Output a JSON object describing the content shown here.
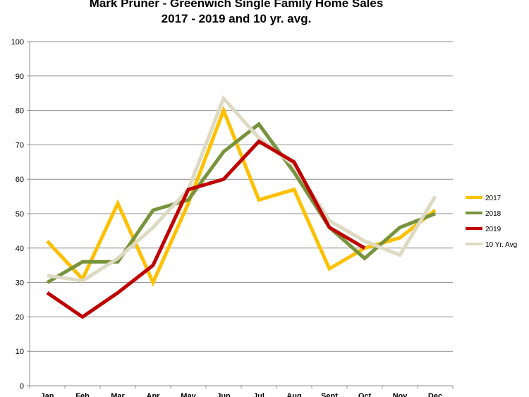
{
  "chart_data": {
    "type": "line",
    "title_line1": "Mark Pruner - Greenwich Single Family Home Sales",
    "title_line2": "2017 - 2019 and 10 yr. avg.",
    "categories": [
      "Jan",
      "Feb",
      "Mar",
      "Apr",
      "May",
      "Jun",
      "Jul",
      "Aug",
      "Sept",
      "Oct",
      "Nov",
      "Dec"
    ],
    "ylim": [
      0,
      100
    ],
    "yticks": [
      0,
      10,
      20,
      30,
      40,
      50,
      60,
      70,
      80,
      90,
      100
    ],
    "grid": true,
    "legend_position": "right",
    "series": [
      {
        "name": "2017",
        "color": "#FFC000",
        "values": [
          42,
          31,
          53,
          30,
          53,
          80,
          54,
          57,
          34,
          40,
          43,
          51
        ]
      },
      {
        "name": "2018",
        "color": "#77933C",
        "values": [
          30,
          36,
          36,
          51,
          54,
          68,
          76,
          62,
          46,
          37,
          46,
          50
        ]
      },
      {
        "name": "10 Yr. Avg",
        "color": "#DDD9C3",
        "values": [
          32,
          30.5,
          37,
          46,
          57,
          83.5,
          72,
          64,
          48,
          42,
          38,
          55
        ]
      },
      {
        "name": "2019",
        "color": "#C00000",
        "values": [
          27,
          20,
          27,
          35,
          57,
          60,
          71,
          65,
          46,
          40,
          null,
          null
        ]
      }
    ],
    "legend_order": [
      "2017",
      "2018",
      "2019",
      "10 Yr. Avg"
    ]
  }
}
